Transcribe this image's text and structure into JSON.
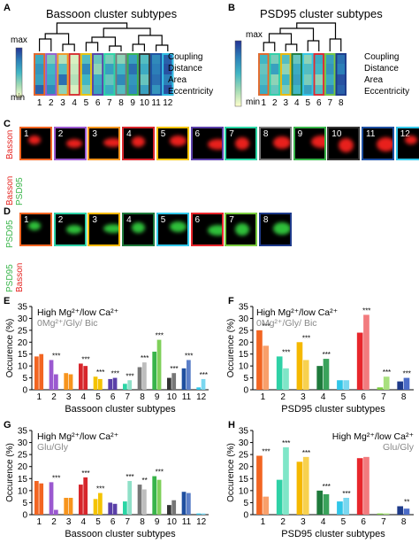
{
  "panels": {
    "A": {
      "letter": "A",
      "title": "Bassoon cluster subtypes",
      "scale_max": "max",
      "scale_min": "min",
      "rows": [
        "Coupling",
        "Distance",
        "Area",
        "Eccentricity"
      ],
      "columns": [
        "1",
        "2",
        "3",
        "4",
        "5",
        "6",
        "7",
        "8",
        "9",
        "10",
        "11",
        "12"
      ]
    },
    "B": {
      "letter": "B",
      "title": "PSD95 cluster subtypes",
      "scale_max": "max",
      "scale_min": "min",
      "rows": [
        "Coupling",
        "Distance",
        "Area",
        "Eccentricity"
      ],
      "columns": [
        "1",
        "2",
        "3",
        "4",
        "5",
        "6",
        "7",
        "8"
      ]
    },
    "C": {
      "letter": "C",
      "label_top": "Basson",
      "label_bottom_1": "Basson",
      "label_bottom_2": "PSD95",
      "numbers": [
        "1",
        "2",
        "3",
        "4",
        "5",
        "6",
        "7",
        "8",
        "9",
        "10",
        "11",
        "12"
      ]
    },
    "D": {
      "letter": "D",
      "label_top": "PSD95",
      "label_bottom_1": "PSD95",
      "label_bottom_2": "Basson",
      "numbers": [
        "1",
        "2",
        "3",
        "4",
        "5",
        "6",
        "7",
        "8"
      ]
    }
  },
  "colors": {
    "bassoon": [
      "#f26522",
      "#9b59d0",
      "#f7941d",
      "#d7262c",
      "#f4c300",
      "#5a3fa8",
      "#2bd6a5",
      "#777777",
      "#38b44a",
      "#333333",
      "#1e4fa0",
      "#31c6e8"
    ],
    "psd95": [
      "#f26522",
      "#2ed1a6",
      "#f5b800",
      "#1e7a3c",
      "#31c6e8",
      "#e8262c",
      "#7acb3f",
      "#1e3a8a"
    ],
    "light_gray": "#bdbdbd"
  },
  "legend": {
    "high_mg": "High Mg²⁺/low Ca²⁺",
    "zero_mg": "0Mg²⁺/Gly/ Bic",
    "glu_gly": "Glu/Gly"
  },
  "charts": {
    "ylabel": "Occurence (%)",
    "E": {
      "letter": "E",
      "xlabel": "Bassoon cluster subtypes"
    },
    "F": {
      "letter": "F",
      "xlabel": "PSD95 cluster subtypes"
    },
    "G": {
      "letter": "G",
      "xlabel": "Bassoon cluster subtypes"
    },
    "H": {
      "letter": "H",
      "xlabel": "PSD95 cluster subtypes"
    }
  },
  "chart_data": [
    {
      "id": "E",
      "type": "bar",
      "categories": [
        "1",
        "2",
        "3",
        "4",
        "5",
        "6",
        "7",
        "8",
        "9",
        "10",
        "11",
        "12"
      ],
      "series": [
        {
          "values": [
            14,
            12.5,
            7,
            11,
            5.5,
            4.5,
            2.5,
            9.5,
            16,
            5,
            9,
            1
          ]
        },
        {
          "values": [
            15,
            6.5,
            6.5,
            10,
            4.5,
            5,
            4,
            11.5,
            21,
            7,
            12.5,
            4.5
          ]
        }
      ],
      "significance": [
        "",
        "***",
        "",
        "***",
        "***",
        "***",
        "***",
        "***",
        "***",
        "***",
        "***",
        "***"
      ],
      "xlabel": "Bassoon cluster subtypes",
      "ylabel": "Occurence (%)",
      "ylim": [
        0,
        35
      ],
      "yticks": [
        0,
        5,
        10,
        15,
        20,
        25,
        30,
        35
      ],
      "legend_placement": "top-left"
    },
    {
      "id": "F",
      "type": "bar",
      "categories": [
        "1",
        "2",
        "3",
        "4",
        "5",
        "6",
        "7",
        "8"
      ],
      "series": [
        {
          "values": [
            25,
            14,
            20,
            10,
            4,
            24,
            1,
            3.5
          ]
        },
        {
          "values": [
            18.5,
            9,
            12.5,
            13,
            4,
            31.5,
            5.5,
            5
          ]
        }
      ],
      "significance": [
        "***",
        "***",
        "***",
        "***",
        "",
        "***",
        "***",
        "***"
      ],
      "xlabel": "PSD95 cluster subtypes",
      "ylabel": "Occurence (%)",
      "ylim": [
        0,
        35
      ],
      "yticks": [
        0,
        5,
        10,
        15,
        20,
        25,
        30,
        35
      ],
      "legend_placement": "top-left"
    },
    {
      "id": "G",
      "type": "bar",
      "categories": [
        "1",
        "2",
        "3",
        "4",
        "5",
        "6",
        "7",
        "8",
        "9",
        "10",
        "11",
        "12"
      ],
      "series": [
        {
          "values": [
            14,
            13.5,
            7,
            12.5,
            6.5,
            5,
            5.5,
            12.5,
            16,
            4,
            9.5,
            0.5
          ]
        },
        {
          "values": [
            13,
            2,
            7,
            15.5,
            9,
            4.5,
            14,
            10.5,
            14.5,
            6,
            9,
            0.5
          ]
        }
      ],
      "significance": [
        "",
        "***",
        "",
        "***",
        "***",
        "",
        "***",
        "**",
        "***",
        "",
        "",
        ""
      ],
      "xlabel": "Bassoon cluster subtypes",
      "ylabel": "Occurence (%)",
      "ylim": [
        0,
        35
      ],
      "yticks": [
        0,
        5,
        10,
        15,
        20,
        25,
        30,
        35
      ],
      "legend_placement": "top-left"
    },
    {
      "id": "H",
      "type": "bar",
      "categories": [
        "1",
        "2",
        "3",
        "4",
        "5",
        "6",
        "7",
        "8"
      ],
      "series": [
        {
          "values": [
            24.5,
            14.5,
            22,
            10,
            5.5,
            23.5,
            0.5,
            3.5
          ]
        },
        {
          "values": [
            7.5,
            28,
            24,
            8.5,
            7,
            24,
            0.5,
            2.5
          ]
        }
      ],
      "significance": [
        "***",
        "***",
        "***",
        "***",
        "***",
        "",
        "",
        "**"
      ],
      "xlabel": "PSD95 cluster subtypes",
      "ylabel": "Occurence (%)",
      "ylim": [
        0,
        35
      ],
      "yticks": [
        0,
        5,
        10,
        15,
        20,
        25,
        30,
        35
      ],
      "legend_placement": "top-right"
    }
  ]
}
